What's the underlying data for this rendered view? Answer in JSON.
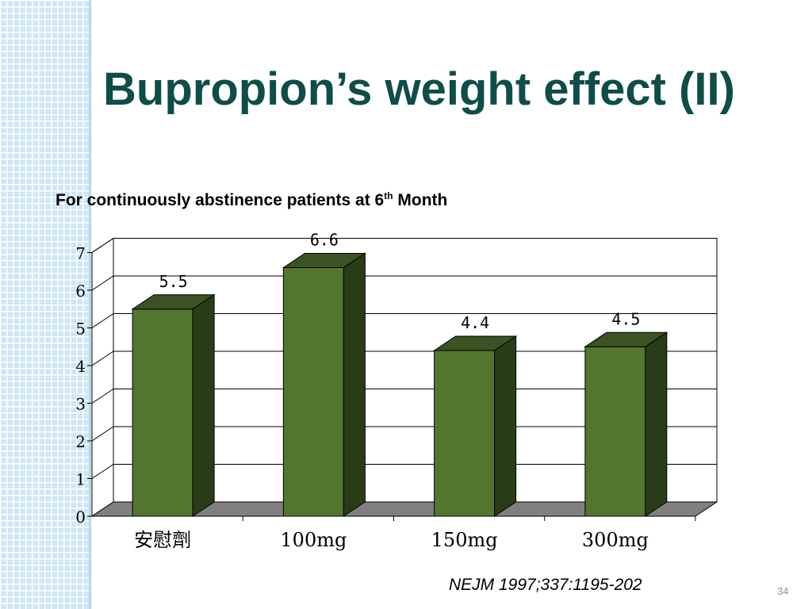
{
  "slide": {
    "title": "Bupropion’s weight effect (II)",
    "subtitle_main": "For continuously abstinence patients at 6",
    "subtitle_sup": "th",
    "subtitle_end": " Month",
    "citation": "NEJM 1997;337:1195-202",
    "page_number": "34"
  },
  "chart_data": {
    "type": "bar",
    "categories": [
      "安慰劑",
      "100mg",
      "150mg",
      "300mg"
    ],
    "values": [
      5.5,
      6.6,
      4.4,
      4.5
    ],
    "data_labels": [
      "5.5",
      "6.6",
      "4.4",
      "4.5"
    ],
    "yticks": [
      "0",
      "1",
      "2",
      "3",
      "4",
      "5",
      "6",
      "7"
    ],
    "ylim": [
      0,
      7
    ],
    "grid": true,
    "three_d": true,
    "colors": {
      "front": "#53762f",
      "top": "#3b5223",
      "side": "#293c18",
      "floor": "#808080"
    }
  }
}
